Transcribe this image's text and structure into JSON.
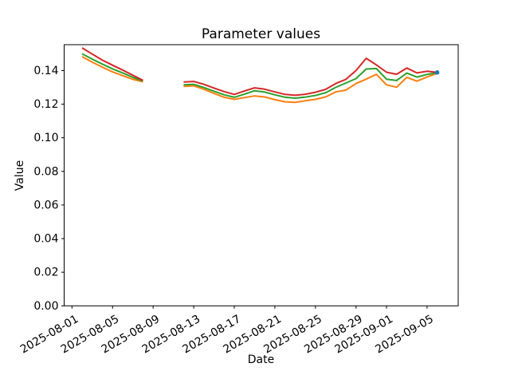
{
  "figure": {
    "title": "Parameter values",
    "xlabel": "Date",
    "ylabel": "Value",
    "background_color": "#ffffff"
  },
  "chart_data": {
    "type": "line",
    "title": "Parameter values",
    "xlabel": "Date",
    "ylabel": "Value",
    "grid": false,
    "legend": "none",
    "base_date": "2025-08-01",
    "xlim_days": [
      -0.77,
      38.07
    ],
    "ylim": [
      0,
      0.1554
    ],
    "x_tick_labels": [
      "2025-08-01",
      "2025-08-05",
      "2025-08-09",
      "2025-08-13",
      "2025-08-17",
      "2025-08-21",
      "2025-08-25",
      "2025-08-29",
      "2025-09-01",
      "2025-09-05"
    ],
    "y_ticks": [
      0.0,
      0.02,
      0.04,
      0.06,
      0.08,
      0.1,
      0.12,
      0.14
    ],
    "y_tick_labels": [
      "0.00",
      "0.02",
      "0.04",
      "0.06",
      "0.08",
      "0.10",
      "0.12",
      "0.14"
    ],
    "axis_color": "#000000",
    "series": [
      {
        "name": "orange-line",
        "color": "#ff7f0e",
        "segments": [
          {
            "dates": [
              "2025-08-02",
              "2025-08-03",
              "2025-08-04",
              "2025-08-05",
              "2025-08-06",
              "2025-08-07",
              "2025-08-08"
            ],
            "values": [
              0.1483,
              0.145,
              0.142,
              0.1392,
              0.137,
              0.1348,
              0.1333
            ]
          },
          {
            "dates": [
              "2025-08-12",
              "2025-08-13",
              "2025-08-14",
              "2025-08-15",
              "2025-08-16",
              "2025-08-17",
              "2025-08-18",
              "2025-08-19",
              "2025-08-20",
              "2025-08-21",
              "2025-08-22",
              "2025-08-23",
              "2025-08-24",
              "2025-08-25",
              "2025-08-26",
              "2025-08-27",
              "2025-08-28",
              "2025-08-29",
              "2025-08-30",
              "2025-08-31",
              "2025-09-01",
              "2025-09-02",
              "2025-09-03",
              "2025-09-04",
              "2025-09-05",
              "2025-09-06"
            ],
            "values": [
              0.1306,
              0.1309,
              0.1289,
              0.1264,
              0.1241,
              0.1229,
              0.1239,
              0.1249,
              0.1243,
              0.1227,
              0.1214,
              0.1211,
              0.122,
              0.1229,
              0.1243,
              0.1273,
              0.1284,
              0.1323,
              0.1349,
              0.1378,
              0.1315,
              0.1301,
              0.136,
              0.1337,
              0.1361,
              0.1384
            ]
          }
        ]
      },
      {
        "name": "green-line",
        "color": "#2ca02c",
        "segments": [
          {
            "dates": [
              "2025-08-02",
              "2025-08-03",
              "2025-08-04",
              "2025-08-05",
              "2025-08-06",
              "2025-08-07",
              "2025-08-08"
            ],
            "values": [
              0.15,
              0.1468,
              0.1438,
              0.141,
              0.1386,
              0.136,
              0.1338
            ]
          },
          {
            "dates": [
              "2025-08-12",
              "2025-08-13",
              "2025-08-14",
              "2025-08-15",
              "2025-08-16",
              "2025-08-17",
              "2025-08-18",
              "2025-08-19",
              "2025-08-20",
              "2025-08-21",
              "2025-08-22",
              "2025-08-23",
              "2025-08-24",
              "2025-08-25",
              "2025-08-26",
              "2025-08-27",
              "2025-08-28",
              "2025-08-29",
              "2025-08-30",
              "2025-08-31",
              "2025-09-01",
              "2025-09-02",
              "2025-09-03",
              "2025-09-04",
              "2025-09-05",
              "2025-09-06"
            ],
            "values": [
              0.1315,
              0.1318,
              0.1299,
              0.1277,
              0.1256,
              0.1241,
              0.1259,
              0.128,
              0.1272,
              0.1256,
              0.1241,
              0.1236,
              0.1242,
              0.1252,
              0.1268,
              0.13,
              0.1326,
              0.1352,
              0.1409,
              0.1412,
              0.1349,
              0.1341,
              0.1385,
              0.1361,
              0.1377,
              0.1386
            ]
          }
        ]
      },
      {
        "name": "red-line",
        "color": "#d62728",
        "segments": [
          {
            "dates": [
              "2025-08-02",
              "2025-08-03",
              "2025-08-04",
              "2025-08-05",
              "2025-08-06",
              "2025-08-07",
              "2025-08-08"
            ],
            "values": [
              0.1535,
              0.1498,
              0.1462,
              0.1432,
              0.1403,
              0.1372,
              0.1342
            ]
          },
          {
            "dates": [
              "2025-08-12",
              "2025-08-13",
              "2025-08-14",
              "2025-08-15",
              "2025-08-16",
              "2025-08-17",
              "2025-08-18",
              "2025-08-19",
              "2025-08-20",
              "2025-08-21",
              "2025-08-22",
              "2025-08-23",
              "2025-08-24",
              "2025-08-25",
              "2025-08-26",
              "2025-08-27",
              "2025-08-28",
              "2025-08-29",
              "2025-08-30",
              "2025-08-31",
              "2025-09-01",
              "2025-09-02",
              "2025-09-03",
              "2025-09-04",
              "2025-09-05",
              "2025-09-06"
            ],
            "values": [
              0.1332,
              0.1335,
              0.1318,
              0.1296,
              0.1275,
              0.1258,
              0.1278,
              0.1297,
              0.1289,
              0.1273,
              0.1258,
              0.1253,
              0.1259,
              0.1271,
              0.1288,
              0.1323,
              0.1348,
              0.14,
              0.1473,
              0.1434,
              0.139,
              0.1378,
              0.1415,
              0.1386,
              0.1396,
              0.1389
            ]
          }
        ]
      }
    ],
    "end_marker": {
      "name": "blue-end-marker",
      "color": "#1f77b4",
      "date": "2025-09-06",
      "value": 0.1389
    }
  }
}
